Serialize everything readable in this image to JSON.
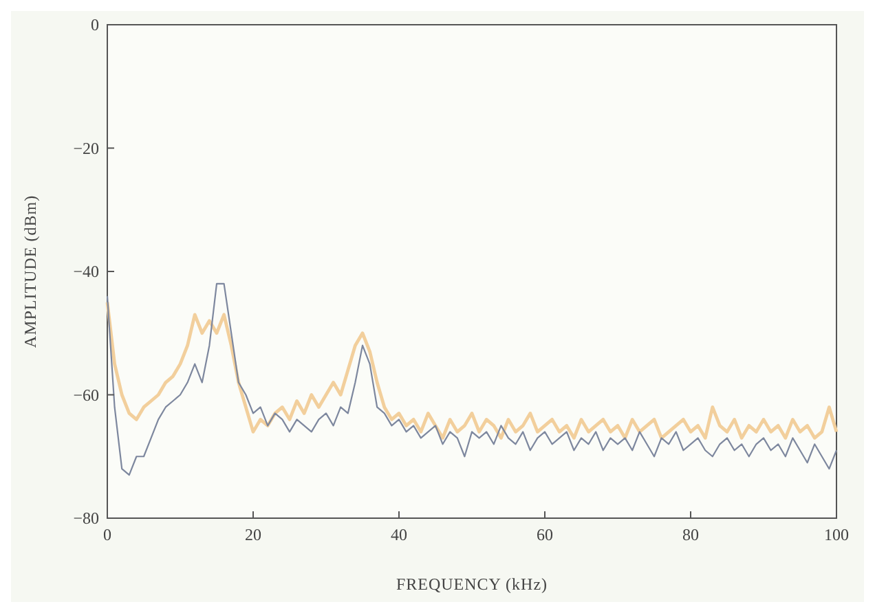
{
  "chart_data": {
    "type": "line",
    "xlabel": "FREQUENCY (kHz)",
    "ylabel": "AMPLITUDE (dBm)",
    "x": [
      0,
      1,
      2,
      3,
      4,
      5,
      6,
      7,
      8,
      9,
      10,
      11,
      12,
      13,
      14,
      15,
      16,
      17,
      18,
      19,
      20,
      21,
      22,
      23,
      24,
      25,
      26,
      27,
      28,
      29,
      30,
      31,
      32,
      33,
      34,
      35,
      36,
      37,
      38,
      39,
      40,
      41,
      42,
      43,
      44,
      45,
      46,
      47,
      48,
      49,
      50,
      51,
      52,
      53,
      54,
      55,
      56,
      57,
      58,
      59,
      60,
      61,
      62,
      63,
      64,
      65,
      66,
      67,
      68,
      69,
      70,
      71,
      72,
      73,
      74,
      75,
      76,
      77,
      78,
      79,
      80,
      81,
      82,
      83,
      84,
      85,
      86,
      87,
      88,
      89,
      90,
      91,
      92,
      93,
      94,
      95,
      96,
      97,
      98,
      99,
      100
    ],
    "series": [
      {
        "color": "#f2cf9c",
        "values": [
          -45,
          -55,
          -60,
          -63,
          -64,
          -62,
          -61,
          -60,
          -58,
          -57,
          -55,
          -52,
          -47,
          -50,
          -48,
          -50,
          -47,
          -52,
          -58,
          -62,
          -66,
          -64,
          -65,
          -63,
          -62,
          -64,
          -61,
          -63,
          -60,
          -62,
          -60,
          -58,
          -60,
          -56,
          -52,
          -50,
          -53,
          -58,
          -62,
          -64,
          -63,
          -65,
          -64,
          -66,
          -63,
          -65,
          -67,
          -64,
          -66,
          -65,
          -63,
          -66,
          -64,
          -65,
          -67,
          -64,
          -66,
          -65,
          -63,
          -66,
          -65,
          -64,
          -66,
          -65,
          -67,
          -64,
          -66,
          -65,
          -64,
          -66,
          -65,
          -67,
          -64,
          -66,
          -65,
          -64,
          -67,
          -66,
          -65,
          -64,
          -66,
          -65,
          -67,
          -62,
          -65,
          -66,
          -64,
          -67,
          -65,
          -66,
          -64,
          -66,
          -65,
          -67,
          -64,
          -66,
          -65,
          -67,
          -66,
          -62,
          -66
        ]
      },
      {
        "color": "#7d879e",
        "values": [
          -44,
          -62,
          -72,
          -73,
          -70,
          -70,
          -67,
          -64,
          -62,
          -61,
          -60,
          -58,
          -55,
          -58,
          -52,
          -42,
          -42,
          -50,
          -58,
          -60,
          -63,
          -62,
          -65,
          -63,
          -64,
          -66,
          -64,
          -65,
          -66,
          -64,
          -63,
          -65,
          -62,
          -63,
          -58,
          -52,
          -55,
          -62,
          -63,
          -65,
          -64,
          -66,
          -65,
          -67,
          -66,
          -65,
          -68,
          -66,
          -67,
          -70,
          -66,
          -67,
          -66,
          -68,
          -65,
          -67,
          -68,
          -66,
          -69,
          -67,
          -66,
          -68,
          -67,
          -66,
          -69,
          -67,
          -68,
          -66,
          -69,
          -67,
          -68,
          -67,
          -69,
          -66,
          -68,
          -70,
          -67,
          -68,
          -66,
          -69,
          -68,
          -67,
          -69,
          -70,
          -68,
          -67,
          -69,
          -68,
          -70,
          -68,
          -67,
          -69,
          -68,
          -70,
          -67,
          -69,
          -71,
          -68,
          -70,
          -72,
          -69
        ]
      }
    ],
    "xlim": [
      0,
      100
    ],
    "xticks": [
      0,
      20,
      40,
      60,
      80,
      100
    ],
    "ylim": [
      -80,
      0
    ],
    "yticks": [
      -80,
      -60,
      -40,
      -20,
      0
    ],
    "marker": "none",
    "line_style": "solid"
  }
}
